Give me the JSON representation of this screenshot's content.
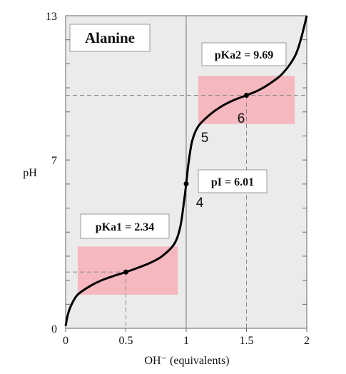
{
  "chart_data": {
    "type": "line",
    "title": "Alanine",
    "xlabel": "OH⁻ (equivalents)",
    "ylabel": "pH",
    "xlim": [
      0,
      2
    ],
    "ylim": [
      0,
      13
    ],
    "x_tick_labels": [
      "0",
      "0.5",
      "1",
      "1.5",
      "2"
    ],
    "y_tick_labels": [
      "0",
      "7",
      "13"
    ],
    "grid": false,
    "series": [
      {
        "x": [
          0.0,
          0.02,
          0.05,
          0.1,
          0.2,
          0.3,
          0.4,
          0.5,
          0.6,
          0.7,
          0.8,
          0.9,
          0.95,
          0.98,
          1.0,
          1.02,
          1.05,
          1.1,
          1.2,
          1.3,
          1.4,
          1.5,
          1.6,
          1.7,
          1.8,
          1.9,
          1.95,
          2.0
        ],
        "y": [
          0.1,
          0.6,
          1.0,
          1.4,
          1.75,
          2.0,
          2.18,
          2.34,
          2.52,
          2.72,
          3.0,
          3.5,
          4.2,
          5.2,
          6.01,
          6.9,
          7.8,
          8.4,
          8.9,
          9.25,
          9.5,
          9.69,
          9.9,
          10.2,
          10.6,
          11.3,
          12.0,
          13.0
        ]
      }
    ],
    "points": [
      {
        "x": 0.5,
        "y": 2.34
      },
      {
        "x": 1.0,
        "y": 6.01
      },
      {
        "x": 1.5,
        "y": 9.69
      }
    ],
    "annotations": {
      "pka1": "pKa1 = 2.34",
      "pka2": "pKa2 = 9.69",
      "pi": "pI = 6.01",
      "n4": "4",
      "n5": "5",
      "n6": "6"
    },
    "colors": {
      "plot_background": "#ebebeb",
      "buffer_region": "#f5b8bf",
      "curve": "#000000",
      "guide": "#888888"
    }
  }
}
